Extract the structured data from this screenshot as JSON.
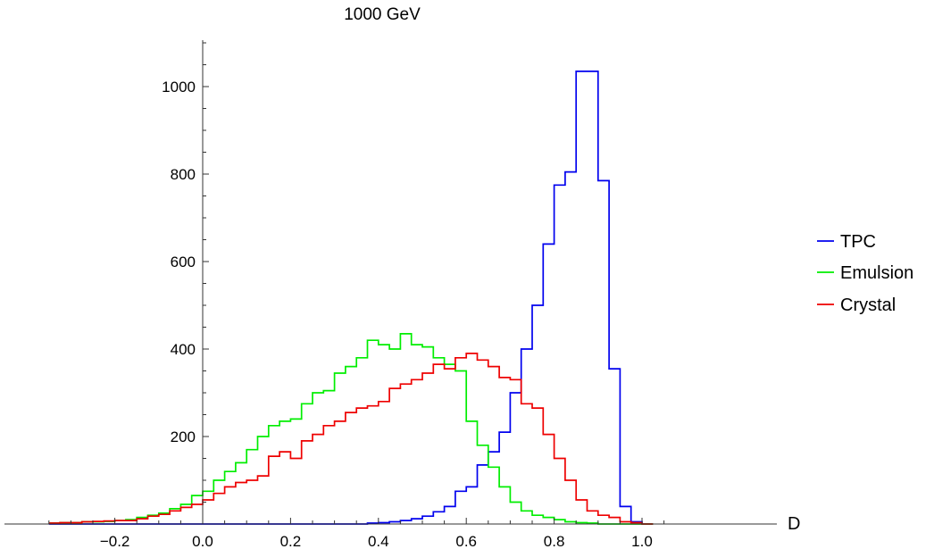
{
  "chart_data": {
    "type": "histogram",
    "title": "1000 GeV",
    "xlabel": "D",
    "ylabel": "",
    "xlim": [
      -0.38,
      1.08
    ],
    "ylim": [
      0,
      1100
    ],
    "grid": false,
    "legend_position": "right",
    "x_ticks": [
      -0.2,
      0.0,
      0.2,
      0.4,
      0.6,
      0.8,
      1.0
    ],
    "x_tick_labels": [
      "−0.2",
      "0.0",
      "0.2",
      "0.4",
      "0.6",
      "0.8",
      "1.0"
    ],
    "y_ticks": [
      200,
      400,
      600,
      800,
      1000
    ],
    "y_tick_labels": [
      "200",
      "400",
      "600",
      "800",
      "1000"
    ],
    "bins": [
      -0.35,
      -0.325,
      -0.3,
      -0.275,
      -0.25,
      -0.225,
      -0.2,
      -0.175,
      -0.15,
      -0.125,
      -0.1,
      -0.075,
      -0.05,
      -0.025,
      0.0,
      0.025,
      0.05,
      0.075,
      0.1,
      0.125,
      0.15,
      0.175,
      0.2,
      0.225,
      0.25,
      0.275,
      0.3,
      0.325,
      0.35,
      0.375,
      0.4,
      0.425,
      0.45,
      0.475,
      0.5,
      0.525,
      0.55,
      0.575,
      0.6,
      0.625,
      0.65,
      0.675,
      0.7,
      0.725,
      0.75,
      0.775,
      0.8,
      0.825,
      0.85,
      0.875,
      0.9,
      0.925,
      0.95,
      0.975,
      1.0,
      1.025
    ],
    "series": [
      {
        "name": "TPC",
        "color": "#0000ee",
        "values": [
          0,
          0,
          0,
          0,
          0,
          0,
          0,
          0,
          0,
          0,
          0,
          0,
          0,
          0,
          0,
          0,
          0,
          0,
          0,
          0,
          0,
          0,
          0,
          0,
          0,
          0,
          0,
          0,
          0,
          2,
          3,
          5,
          8,
          12,
          18,
          28,
          40,
          75,
          85,
          135,
          165,
          210,
          300,
          400,
          500,
          640,
          775,
          805,
          1035,
          1035,
          785,
          355,
          40,
          5,
          0
        ]
      },
      {
        "name": "Emulsion",
        "color": "#00ee00",
        "values": [
          2,
          3,
          3,
          5,
          5,
          6,
          8,
          10,
          15,
          20,
          25,
          35,
          45,
          65,
          75,
          100,
          120,
          140,
          170,
          200,
          225,
          235,
          240,
          275,
          300,
          305,
          345,
          360,
          380,
          420,
          410,
          400,
          435,
          410,
          405,
          380,
          365,
          350,
          235,
          180,
          130,
          85,
          50,
          30,
          20,
          15,
          10,
          5,
          3,
          2,
          0,
          0,
          0,
          0,
          0
        ]
      },
      {
        "name": "Crystal",
        "color": "#ee0000",
        "values": [
          2,
          3,
          3,
          5,
          6,
          7,
          8,
          8,
          12,
          18,
          22,
          30,
          38,
          45,
          55,
          70,
          85,
          95,
          100,
          110,
          155,
          165,
          150,
          190,
          205,
          225,
          235,
          255,
          265,
          270,
          280,
          310,
          320,
          330,
          345,
          365,
          355,
          380,
          390,
          375,
          360,
          335,
          330,
          275,
          265,
          205,
          150,
          100,
          55,
          30,
          20,
          15,
          5,
          3,
          0
        ]
      }
    ]
  }
}
